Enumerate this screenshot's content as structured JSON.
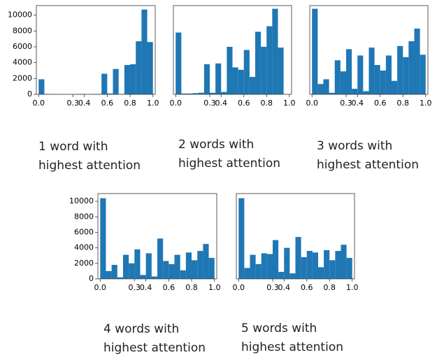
{
  "chart_data": [
    {
      "type": "histogram",
      "color": "#1f77b4",
      "bins": [
        0,
        0.05,
        0.1,
        0.15,
        0.2,
        0.25,
        0.3,
        0.35,
        0.4,
        0.45,
        0.5,
        0.55,
        0.6,
        0.65,
        0.7,
        0.75,
        0.8,
        0.85,
        0.9,
        0.95,
        1
      ],
      "counts": [
        1900,
        50,
        30,
        20,
        30,
        20,
        40,
        50,
        20,
        50,
        50,
        2600,
        100,
        3200,
        50,
        3700,
        3800,
        6700,
        10700,
        6600
      ],
      "xlim": [
        -0.02,
        1.02
      ],
      "ylim": [
        0,
        11200
      ],
      "xticks": [
        {
          "value": 0,
          "label": "0.0"
        },
        0.3,
        0.4,
        0.6,
        0.8,
        {
          "value": 1,
          "label": "1.0"
        }
      ],
      "yticks": [
        0,
        2000,
        4000,
        6000,
        8000,
        10000
      ],
      "caption": [
        "1 word with",
        "highest attention"
      ]
    },
    {
      "type": "histogram",
      "color": "#1f77b4",
      "bins": [
        0,
        0.05,
        0.1,
        0.15,
        0.2,
        0.25,
        0.3,
        0.35,
        0.4,
        0.45,
        0.5,
        0.55,
        0.6,
        0.65,
        0.7,
        0.75,
        0.8,
        0.85,
        0.9,
        0.95,
        1
      ],
      "counts": [
        7800,
        100,
        100,
        150,
        200,
        3800,
        200,
        3900,
        300,
        6000,
        3400,
        3100,
        5600,
        2200,
        7900,
        6000,
        8600,
        10800,
        5900,
        0
      ],
      "xlim": [
        -0.02,
        1.02
      ],
      "ylim": [
        0,
        11200
      ],
      "xticks": [
        {
          "value": 0,
          "label": "0.0"
        },
        0.3,
        0.4,
        0.6,
        0.8,
        {
          "value": 1,
          "label": "1.0"
        }
      ],
      "caption": [
        "2 words with",
        "highest attention"
      ]
    },
    {
      "type": "histogram",
      "color": "#1f77b4",
      "bins": [
        0,
        0.05,
        0.1,
        0.15,
        0.2,
        0.25,
        0.3,
        0.35,
        0.4,
        0.45,
        0.5,
        0.55,
        0.6,
        0.65,
        0.7,
        0.75,
        0.8,
        0.85,
        0.9,
        0.95,
        1
      ],
      "counts": [
        10800,
        1300,
        1900,
        200,
        4300,
        2900,
        5700,
        700,
        4900,
        400,
        5900,
        3700,
        3000,
        4900,
        1700,
        6100,
        4700,
        6700,
        8300,
        5000
      ],
      "xlim": [
        -0.02,
        1.02
      ],
      "ylim": [
        0,
        11200
      ],
      "xticks": [
        {
          "value": 0,
          "label": "0.0"
        },
        0.3,
        0.4,
        0.6,
        0.8,
        {
          "value": 1,
          "label": "1.0"
        }
      ],
      "caption": [
        "3 words with",
        "highest attention"
      ]
    },
    {
      "type": "histogram",
      "color": "#1f77b4",
      "bins": [
        0,
        0.05,
        0.1,
        0.15,
        0.2,
        0.25,
        0.3,
        0.35,
        0.4,
        0.45,
        0.5,
        0.55,
        0.6,
        0.65,
        0.7,
        0.75,
        0.8,
        0.85,
        0.9,
        0.95,
        1
      ],
      "counts": [
        10400,
        1000,
        1800,
        200,
        3100,
        2000,
        3800,
        500,
        3300,
        300,
        5200,
        2300,
        1900,
        3100,
        1100,
        3400,
        2400,
        3600,
        4500,
        2700
      ],
      "xlim": [
        -0.02,
        1.02
      ],
      "ylim": [
        0,
        11000
      ],
      "xticks": [
        {
          "value": 0,
          "label": "0.0"
        },
        0.3,
        0.4,
        0.6,
        0.8,
        {
          "value": 1,
          "label": "1.0"
        }
      ],
      "yticks": [
        0,
        2000,
        4000,
        6000,
        8000,
        10000
      ],
      "caption": [
        "4 words with",
        "highest attention"
      ]
    },
    {
      "type": "histogram",
      "color": "#1f77b4",
      "bins": [
        0,
        0.05,
        0.1,
        0.15,
        0.2,
        0.25,
        0.3,
        0.35,
        0.4,
        0.45,
        0.5,
        0.55,
        0.6,
        0.65,
        0.7,
        0.75,
        0.8,
        0.85,
        0.9,
        0.95,
        1
      ],
      "counts": [
        10400,
        1400,
        3100,
        1900,
        3300,
        3200,
        5000,
        900,
        4000,
        700,
        5400,
        2800,
        3600,
        3400,
        1500,
        3700,
        2400,
        3600,
        4400,
        2700
      ],
      "xlim": [
        -0.02,
        1.02
      ],
      "ylim": [
        0,
        11000
      ],
      "xticks": [
        {
          "value": 0,
          "label": "0.0"
        },
        0.3,
        0.4,
        0.6,
        0.8,
        {
          "value": 1,
          "label": "1.0"
        }
      ],
      "caption": [
        "5 words with",
        "highest attention"
      ]
    }
  ]
}
